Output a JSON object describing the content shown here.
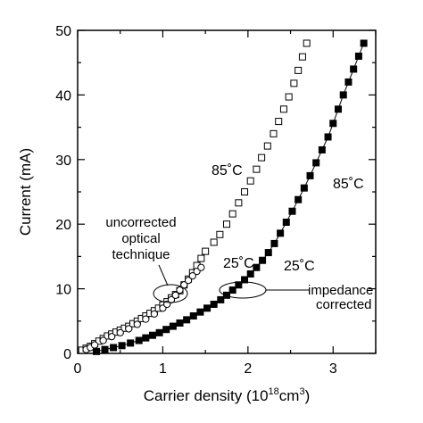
{
  "chart_data": {
    "type": "scatter",
    "xlabel": "Carrier density (10",
    "xlabel_sup": "18",
    "xlabel_tail": "cm",
    "xlabel_sup2": "3",
    "xlabel_close": ")",
    "ylabel": "Current (mA)",
    "xlim": [
      0,
      3.5
    ],
    "ylim": [
      0,
      50
    ],
    "xticks": [
      0,
      1,
      2,
      3
    ],
    "xtick_labels": [
      "0",
      "1",
      "2",
      "3"
    ],
    "yticks": [
      0,
      10,
      20,
      30,
      40,
      50
    ],
    "ytick_labels": [
      "0",
      "10",
      "20",
      "30",
      "40",
      "50"
    ],
    "grid": false,
    "annotations": {
      "uncorrected": [
        "uncorrected",
        "optical",
        "technique"
      ],
      "impedance": [
        "impedance",
        "corrected"
      ],
      "t85_open": "85˚C",
      "t85_filled": "85˚C",
      "t25_open": "25˚C",
      "t25_filled": "25˚C"
    },
    "series": [
      {
        "marker": "open-square",
        "points": [
          [
            0.05,
            0.5
          ],
          [
            0.1,
            0.8
          ],
          [
            0.15,
            1.1
          ],
          [
            0.2,
            1.5
          ],
          [
            0.25,
            1.9
          ],
          [
            0.3,
            2.3
          ],
          [
            0.35,
            2.7
          ],
          [
            0.4,
            3.0
          ],
          [
            0.45,
            3.3
          ],
          [
            0.5,
            3.6
          ],
          [
            0.55,
            3.9
          ],
          [
            0.6,
            4.2
          ],
          [
            0.65,
            4.6
          ],
          [
            0.7,
            5.0
          ],
          [
            0.75,
            5.4
          ],
          [
            0.8,
            5.8
          ],
          [
            0.85,
            6.2
          ],
          [
            0.9,
            6.6
          ],
          [
            0.95,
            7.0
          ],
          [
            1.0,
            7.5
          ],
          [
            1.05,
            8.0
          ],
          [
            1.1,
            8.6
          ],
          [
            1.15,
            9.1
          ],
          [
            1.2,
            9.7
          ],
          [
            1.25,
            10.6
          ],
          [
            1.3,
            11.5
          ],
          [
            1.35,
            12.5
          ],
          [
            1.4,
            13.6
          ],
          [
            1.45,
            14.7
          ],
          [
            1.5,
            15.8
          ],
          [
            1.6,
            17.2
          ],
          [
            1.67,
            18.4
          ],
          [
            1.75,
            20.0
          ],
          [
            1.82,
            21.6
          ],
          [
            1.89,
            23.3
          ],
          [
            1.96,
            25.0
          ],
          [
            2.03,
            26.7
          ],
          [
            2.1,
            28.5
          ],
          [
            2.16,
            30.3
          ],
          [
            2.23,
            32.1
          ],
          [
            2.3,
            34.0
          ],
          [
            2.36,
            35.9
          ],
          [
            2.42,
            37.8
          ],
          [
            2.48,
            39.7
          ],
          [
            2.54,
            41.8
          ],
          [
            2.59,
            43.8
          ],
          [
            2.64,
            45.9
          ],
          [
            2.69,
            48.0
          ]
        ]
      },
      {
        "marker": "open-circle",
        "points": [
          [
            0.1,
            0.6
          ],
          [
            0.15,
            0.9
          ],
          [
            0.2,
            1.3
          ],
          [
            0.3,
            2.0
          ],
          [
            0.4,
            2.6
          ],
          [
            0.5,
            3.2
          ],
          [
            0.6,
            3.8
          ],
          [
            0.7,
            4.5
          ],
          [
            0.8,
            5.3
          ],
          [
            0.9,
            6.1
          ],
          [
            1.0,
            7.0
          ],
          [
            1.05,
            7.6
          ],
          [
            1.1,
            8.3
          ],
          [
            1.15,
            9.0
          ],
          [
            1.2,
            9.8
          ],
          [
            1.25,
            10.6
          ],
          [
            1.3,
            11.3
          ],
          [
            1.35,
            12.0
          ],
          [
            1.4,
            12.7
          ],
          [
            1.45,
            13.3
          ]
        ]
      },
      {
        "marker": "filled-square",
        "line": true,
        "points": [
          [
            0.22,
            0.3
          ],
          [
            0.32,
            0.6
          ],
          [
            0.42,
            0.9
          ],
          [
            0.52,
            1.2
          ],
          [
            0.62,
            1.6
          ],
          [
            0.72,
            2.0
          ],
          [
            0.8,
            2.4
          ],
          [
            0.88,
            2.8
          ],
          [
            0.96,
            3.2
          ],
          [
            1.04,
            3.7
          ],
          [
            1.12,
            4.2
          ],
          [
            1.2,
            4.7
          ],
          [
            1.28,
            5.2
          ],
          [
            1.36,
            5.8
          ],
          [
            1.44,
            6.4
          ],
          [
            1.52,
            7.0
          ],
          [
            1.6,
            7.6
          ],
          [
            1.68,
            8.3
          ],
          [
            1.75,
            9.0
          ],
          [
            1.82,
            9.8
          ],
          [
            1.89,
            10.6
          ],
          [
            1.96,
            11.4
          ],
          [
            2.03,
            12.3
          ],
          [
            2.1,
            13.3
          ],
          [
            2.17,
            14.4
          ],
          [
            2.24,
            15.6
          ],
          [
            2.31,
            17.0
          ],
          [
            2.38,
            18.6
          ],
          [
            2.45,
            20.3
          ],
          [
            2.52,
            22.0
          ],
          [
            2.59,
            23.8
          ],
          [
            2.66,
            25.6
          ],
          [
            2.73,
            27.5
          ],
          [
            2.8,
            29.5
          ],
          [
            2.87,
            31.5
          ],
          [
            2.94,
            33.5
          ],
          [
            3.0,
            35.6
          ],
          [
            3.06,
            37.8
          ],
          [
            3.12,
            40.0
          ],
          [
            3.18,
            42.0
          ],
          [
            3.24,
            44.0
          ],
          [
            3.3,
            46.0
          ],
          [
            3.36,
            48.0
          ]
        ]
      }
    ]
  }
}
